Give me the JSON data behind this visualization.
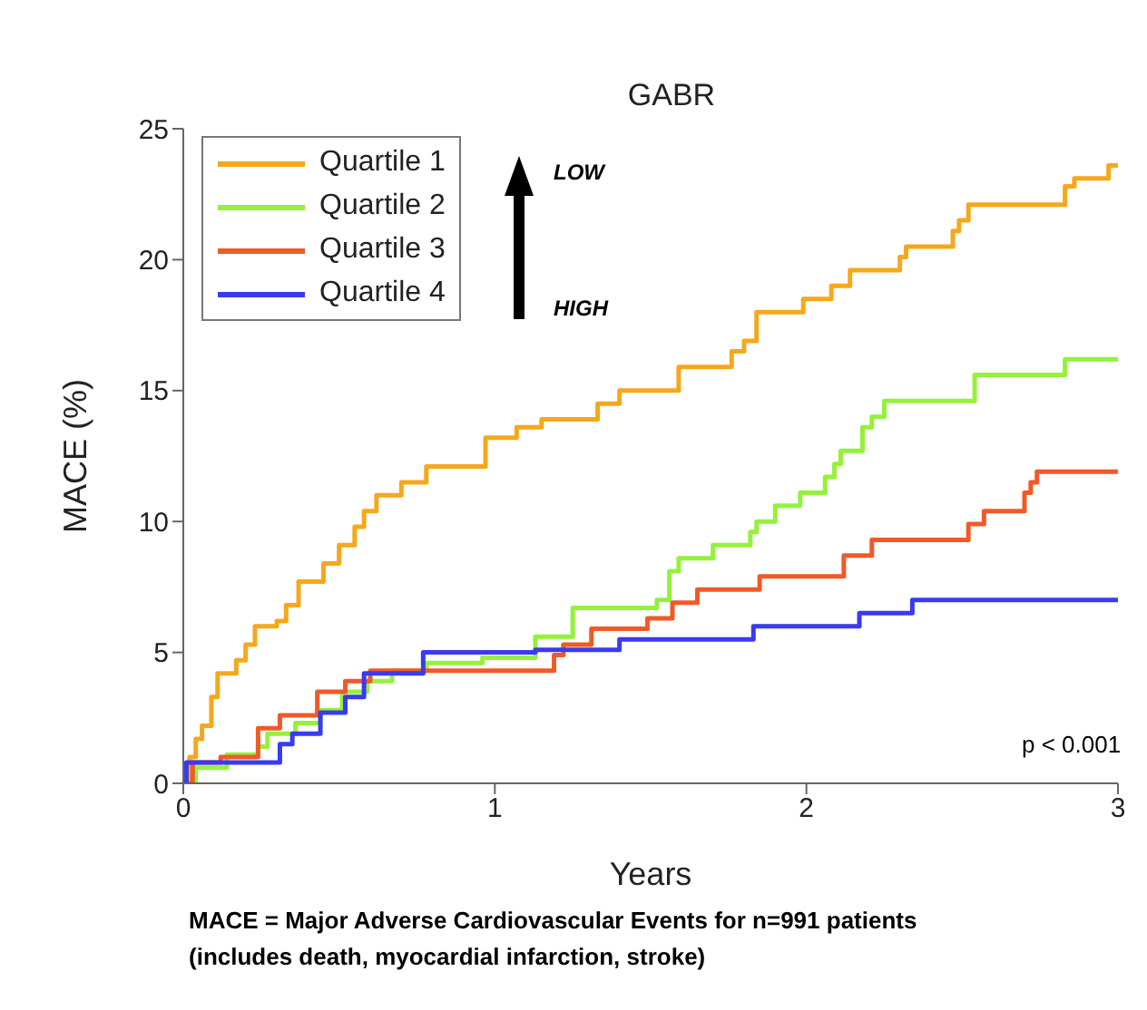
{
  "chart_data": {
    "type": "step",
    "title": "GABR",
    "xlabel": "Years",
    "ylabel": "MACE (%)",
    "xlim": [
      0,
      3
    ],
    "xticks": [
      0,
      1,
      2,
      3
    ],
    "ylim": [
      0,
      25
    ],
    "yticks": [
      0,
      5,
      10,
      15,
      20,
      25
    ],
    "grid": false,
    "legend": "top left",
    "line_style": "solid",
    "marker": "none",
    "annotations": [
      "LOW",
      "HIGH",
      "p < 0.001",
      "MACE = Major Adverse Cardiovascular Events for n=991 patients",
      "(includes death, myocardial infarction, stroke)"
    ],
    "series": [
      {
        "name": "Quartile 1",
        "color": "#f5a81c",
        "x": [
          0,
          0.02,
          0.04,
          0.06,
          0.09,
          0.11,
          0.17,
          0.2,
          0.23,
          0.3,
          0.33,
          0.37,
          0.45,
          0.5,
          0.55,
          0.58,
          0.62,
          0.7,
          0.78,
          0.97,
          1.07,
          1.15,
          1.33,
          1.4,
          1.59,
          1.76,
          1.8,
          1.84,
          1.99,
          2.08,
          2.14,
          2.3,
          2.32,
          2.47,
          2.49,
          2.52,
          2.83,
          2.86,
          2.97,
          3
        ],
        "values": [
          0,
          1,
          1.7,
          2.2,
          3.3,
          4.2,
          4.7,
          5.3,
          6,
          6.2,
          6.8,
          7.7,
          8.4,
          9.1,
          9.8,
          10.4,
          11,
          11.5,
          12.1,
          13.2,
          13.6,
          13.9,
          14.5,
          15,
          15.9,
          16.5,
          16.9,
          18,
          18.5,
          19,
          19.6,
          20.1,
          20.5,
          21.1,
          21.5,
          22.1,
          22.8,
          23.1,
          23.6,
          23.6
        ]
      },
      {
        "name": "Quartile 2",
        "color": "#94f23a",
        "x": [
          0,
          0.04,
          0.14,
          0.24,
          0.27,
          0.36,
          0.44,
          0.51,
          0.59,
          0.67,
          0.78,
          0.96,
          1.13,
          1.25,
          1.52,
          1.56,
          1.59,
          1.7,
          1.82,
          1.84,
          1.9,
          1.98,
          2.06,
          2.09,
          2.11,
          2.18,
          2.21,
          2.25,
          2.54,
          2.83,
          3
        ],
        "values": [
          0,
          0.6,
          1.1,
          1.4,
          1.9,
          2.3,
          2.8,
          3.5,
          3.9,
          4.3,
          4.6,
          4.8,
          5.6,
          6.7,
          7,
          8.1,
          8.6,
          9.1,
          9.6,
          10,
          10.6,
          11.1,
          11.7,
          12.2,
          12.7,
          13.6,
          14,
          14.6,
          15.6,
          16.2,
          16.2
        ]
      },
      {
        "name": "Quartile 3",
        "color": "#f05a28",
        "x": [
          0,
          0.03,
          0.12,
          0.24,
          0.31,
          0.43,
          0.52,
          0.6,
          1.19,
          1.22,
          1.31,
          1.49,
          1.57,
          1.65,
          1.85,
          2.12,
          2.21,
          2.52,
          2.57,
          2.7,
          2.72,
          2.74,
          3
        ],
        "values": [
          0,
          0.8,
          1,
          2.1,
          2.6,
          3.5,
          3.9,
          4.3,
          4.9,
          5.3,
          5.9,
          6.3,
          6.9,
          7.4,
          7.9,
          8.7,
          9.3,
          9.9,
          10.4,
          11.1,
          11.5,
          11.9,
          11.9
        ]
      },
      {
        "name": "Quartile 4",
        "color": "#3a3af0",
        "x": [
          0,
          0.01,
          0.31,
          0.35,
          0.44,
          0.52,
          0.58,
          0.77,
          1.13,
          1.4,
          1.83,
          2.17,
          2.34,
          3
        ],
        "values": [
          0,
          0.8,
          1.5,
          1.9,
          2.7,
          3.3,
          4.2,
          5,
          5.1,
          5.5,
          6,
          6.5,
          7,
          7
        ]
      }
    ]
  }
}
